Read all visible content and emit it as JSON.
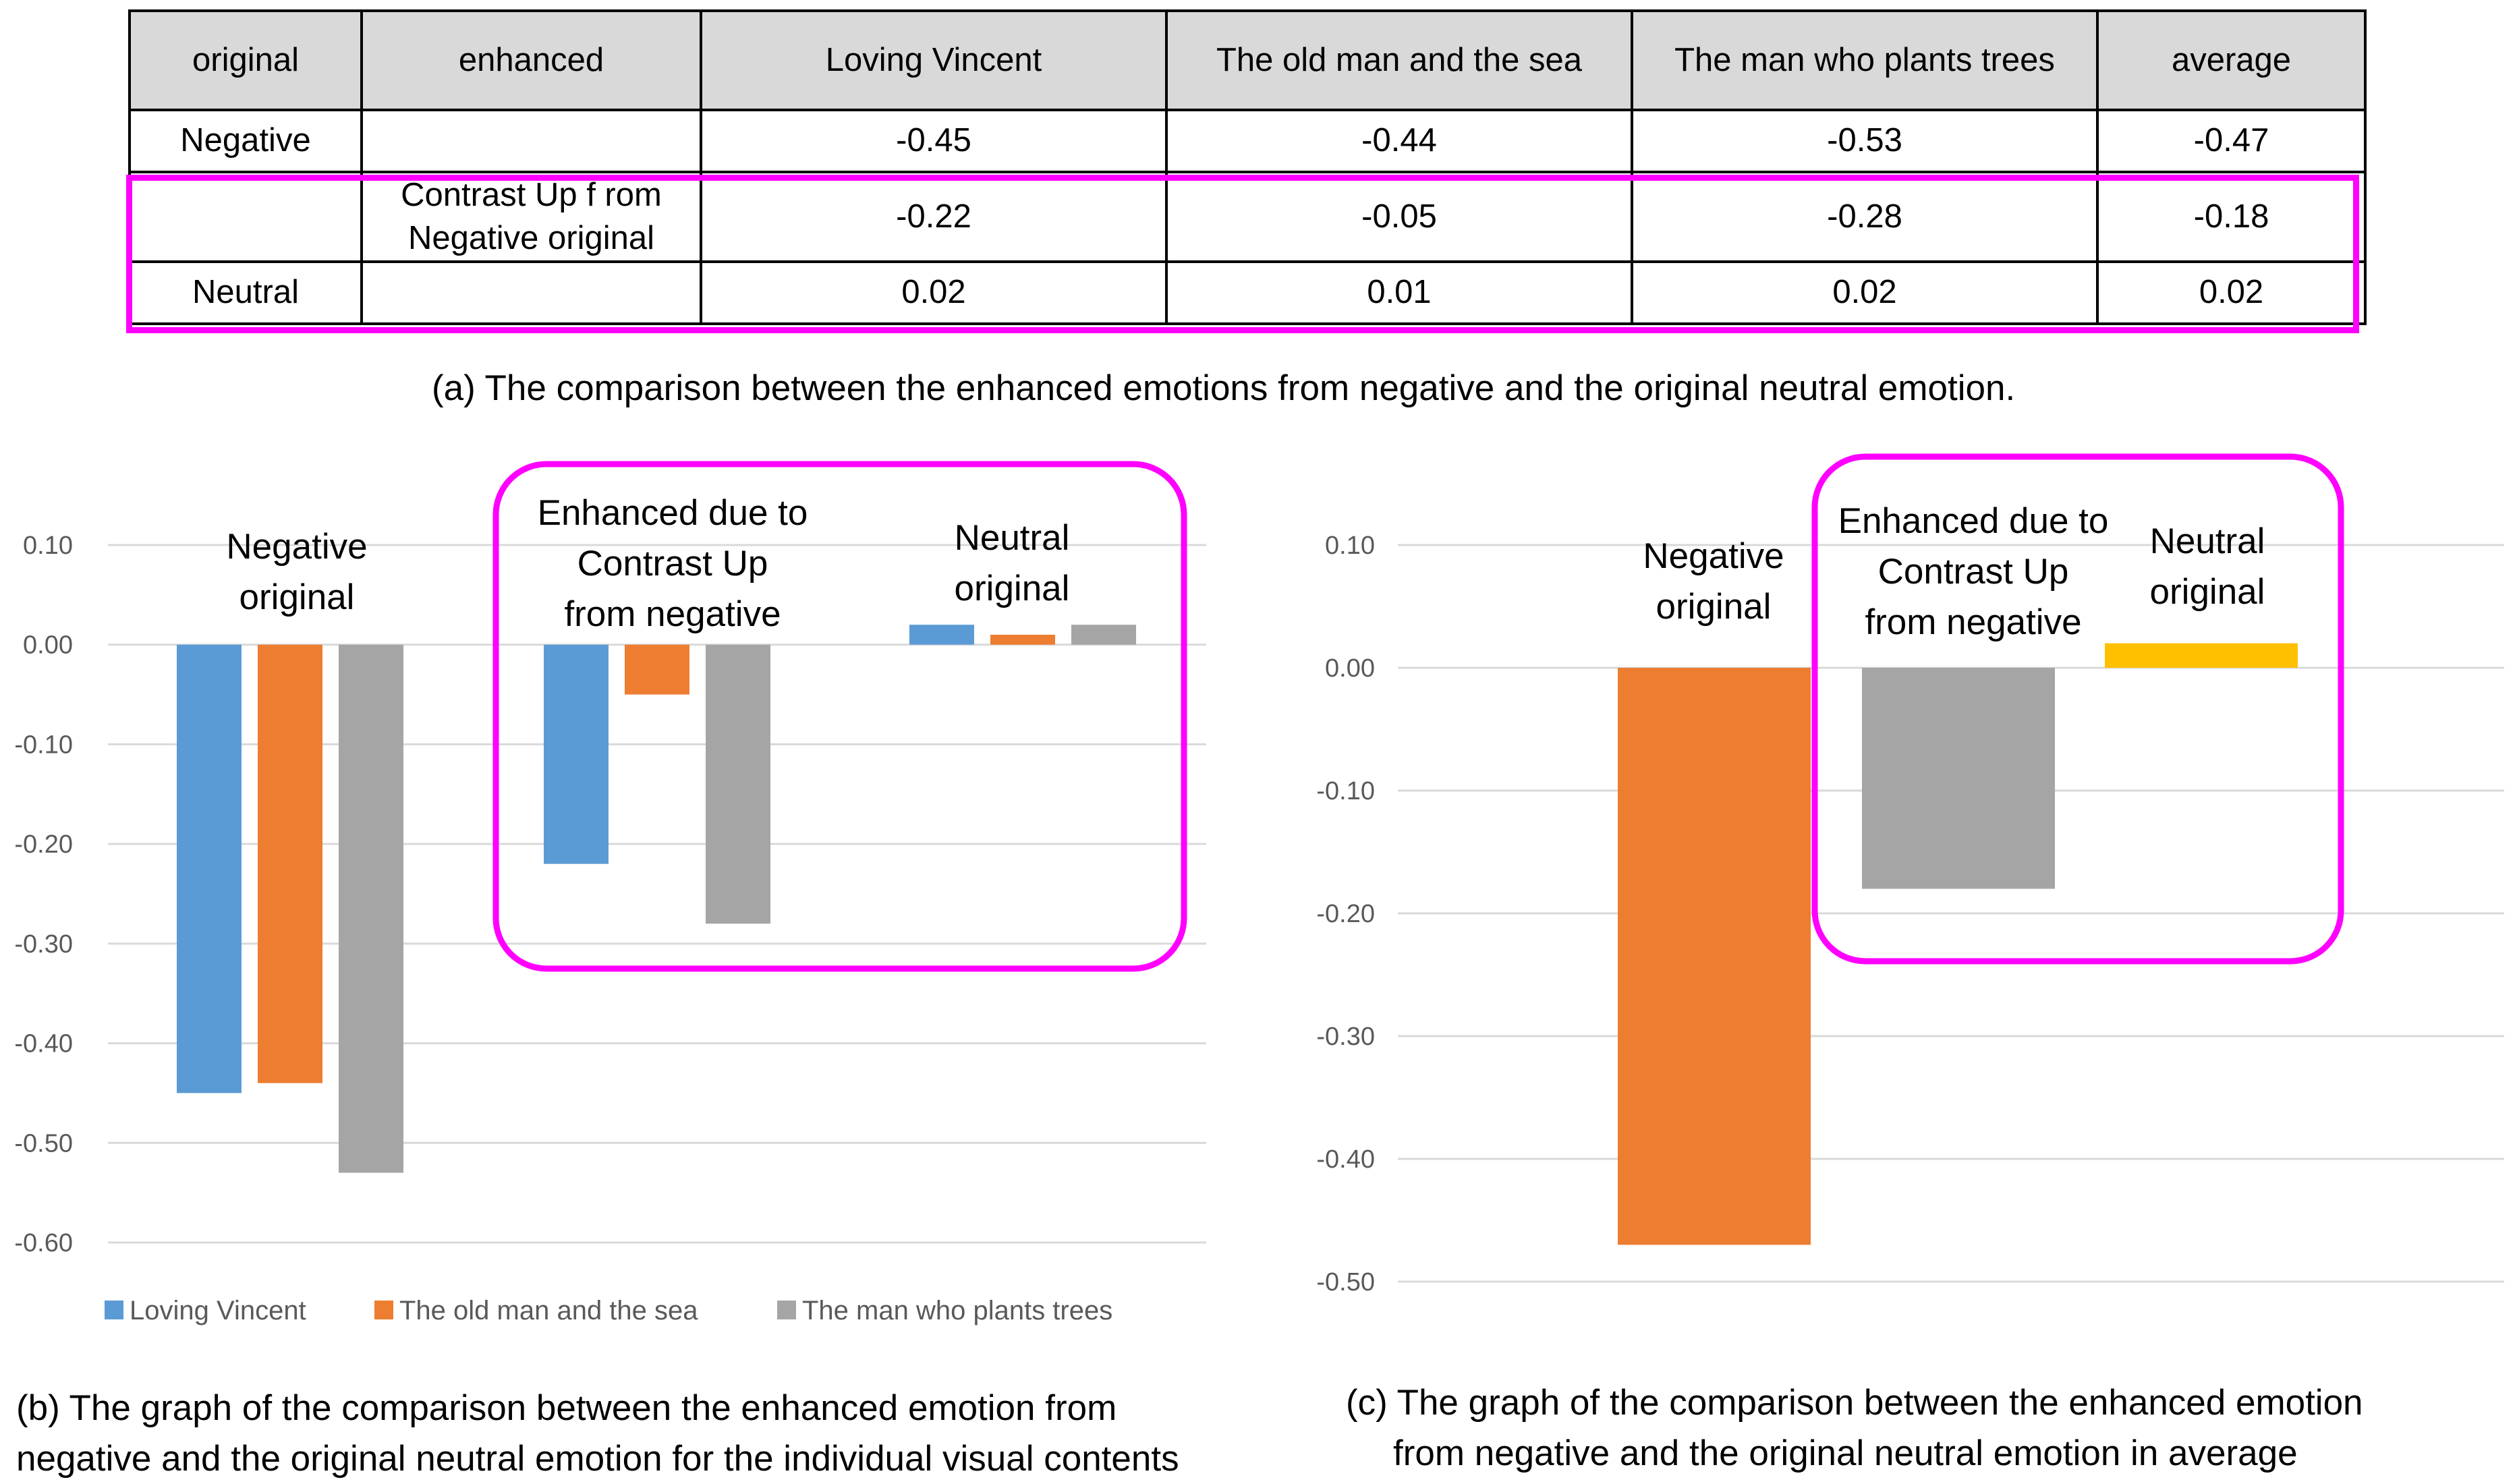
{
  "table": {
    "headers": [
      "original",
      "enhanced",
      "Loving Vincent",
      "The old man and  the sea",
      "The man who plants trees",
      "average"
    ],
    "rows": [
      {
        "original": "Negative",
        "enhanced": "",
        "values": [
          "-0.45",
          "-0.44",
          "-0.53",
          "-0.47"
        ]
      },
      {
        "original": "",
        "enhanced": "Contrast Up f rom Negative original",
        "values": [
          "-0.22",
          "-0.05",
          "-0.28",
          "-0.18"
        ]
      },
      {
        "original": "Neutral",
        "enhanced": "",
        "values": [
          "0.02",
          "0.01",
          "0.02",
          "0.02"
        ]
      }
    ],
    "highlight_color": "#ff00ff"
  },
  "captions": {
    "a": "(a)  The comparison between the enhanced emotions from negative and the original neutral emotion.",
    "b_line1": "(b) The graph of the comparison between the enhanced emotion  from",
    "b_line2": "negative and the original neutral emotion for the individual visual contents",
    "c_line1": "(c) The graph of the comparison between the enhanced emotion",
    "c_line2": "from negative and the original neutral emotion in  average"
  },
  "chart_data": [
    {
      "type": "bar",
      "title": "",
      "categories": [
        "Negative original",
        "Enhanced  due to Contrast Up from negative",
        "Neutral original"
      ],
      "category_label_lines": [
        [
          "Negative",
          "original"
        ],
        [
          "Enhanced  due to",
          "Contrast Up",
          "from negative"
        ],
        [
          "Neutral",
          "original"
        ]
      ],
      "series": [
        {
          "name": "Loving Vincent",
          "color": "#5b9bd5",
          "values": [
            -0.45,
            -0.22,
            0.02
          ]
        },
        {
          "name": "The old man and  the sea",
          "color": "#ed7d31",
          "values": [
            -0.44,
            -0.05,
            0.01
          ]
        },
        {
          "name": "The man who plants trees",
          "color": "#a5a5a5",
          "values": [
            -0.53,
            -0.28,
            0.02
          ]
        }
      ],
      "yticks": [
        0.1,
        0.0,
        -0.1,
        -0.2,
        -0.3,
        -0.4,
        -0.5,
        -0.6
      ],
      "ytick_labels": [
        "0.10",
        "0.00",
        "-0.10",
        "-0.20",
        "-0.30",
        "-0.40",
        "-0.50",
        "-0.60"
      ],
      "ylim": [
        -0.6,
        0.1
      ],
      "grid": true,
      "legend": "bottom",
      "highlight": "Enhanced and Neutral groups boxed in magenta"
    },
    {
      "type": "bar",
      "title": "",
      "categories": [
        "Negative original",
        "Enhanced  due to Contrast Up from negative",
        "Neutral original"
      ],
      "category_label_lines": [
        [
          "Negative",
          "original"
        ],
        [
          "Enhanced  due to",
          "Contrast Up",
          "from negative"
        ],
        [
          "Neutral",
          "original"
        ]
      ],
      "series": [
        {
          "name": "average",
          "colors": [
            "#ed7d31",
            "#a5a5a5",
            "#ffc000"
          ],
          "values": [
            -0.47,
            -0.18,
            0.02
          ]
        }
      ],
      "yticks": [
        0.1,
        0.0,
        -0.1,
        -0.2,
        -0.3,
        -0.4,
        -0.5
      ],
      "ytick_labels": [
        "0.10",
        "0.00",
        "-0.10",
        "-0.20",
        "-0.30",
        "-0.40",
        "-0.50"
      ],
      "ylim": [
        -0.5,
        0.1
      ],
      "grid": true,
      "legend": "none",
      "highlight": "Enhanced and Neutral groups boxed in magenta"
    }
  ],
  "colors": {
    "highlight": "#ff00ff",
    "grid": "#d9d9d9",
    "tick_text": "#595959"
  }
}
